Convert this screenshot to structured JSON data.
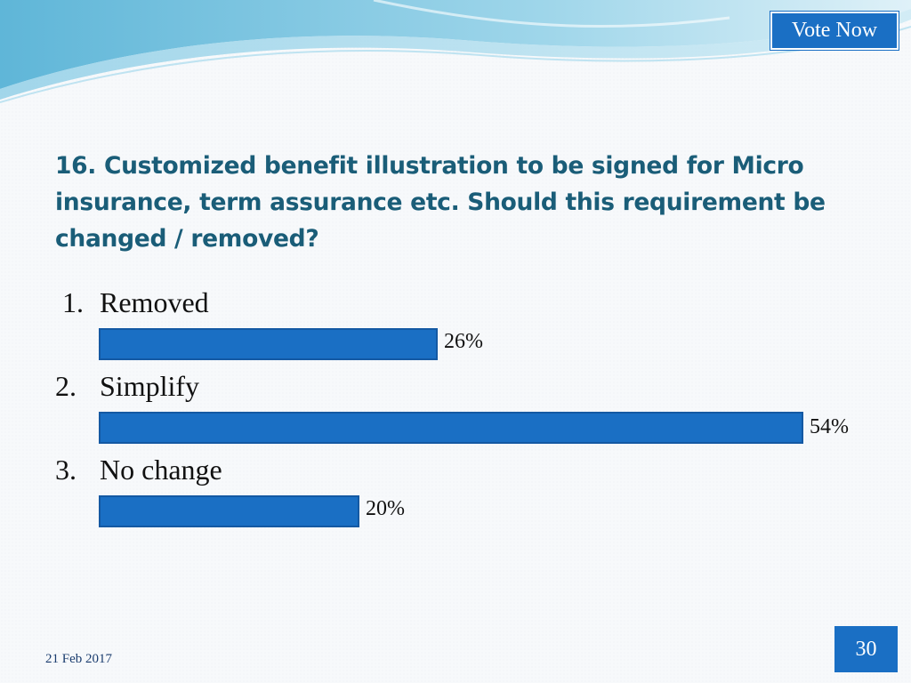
{
  "header": {
    "vote_label": "Vote Now"
  },
  "slide": {
    "question": "16. Customized benefit illustration to be signed for Micro insurance, term assurance etc. Should this requirement be changed / removed?"
  },
  "chart_data": {
    "type": "bar",
    "orientation": "horizontal",
    "title": "16. Customized benefit illustration to be signed for Micro insurance, term assurance etc. Should this requirement be changed / removed?",
    "categories": [
      "Removed",
      "Simplify",
      "No change"
    ],
    "category_numbers": [
      "1.",
      "2.",
      "3."
    ],
    "values": [
      26,
      54,
      20
    ],
    "value_labels": [
      "26%",
      "54%",
      "20%"
    ],
    "unit": "%",
    "xlim": [
      0,
      54
    ],
    "bar_color": "#1a6fc4"
  },
  "footer": {
    "date": "21 Feb 2017",
    "page_number": "30"
  }
}
